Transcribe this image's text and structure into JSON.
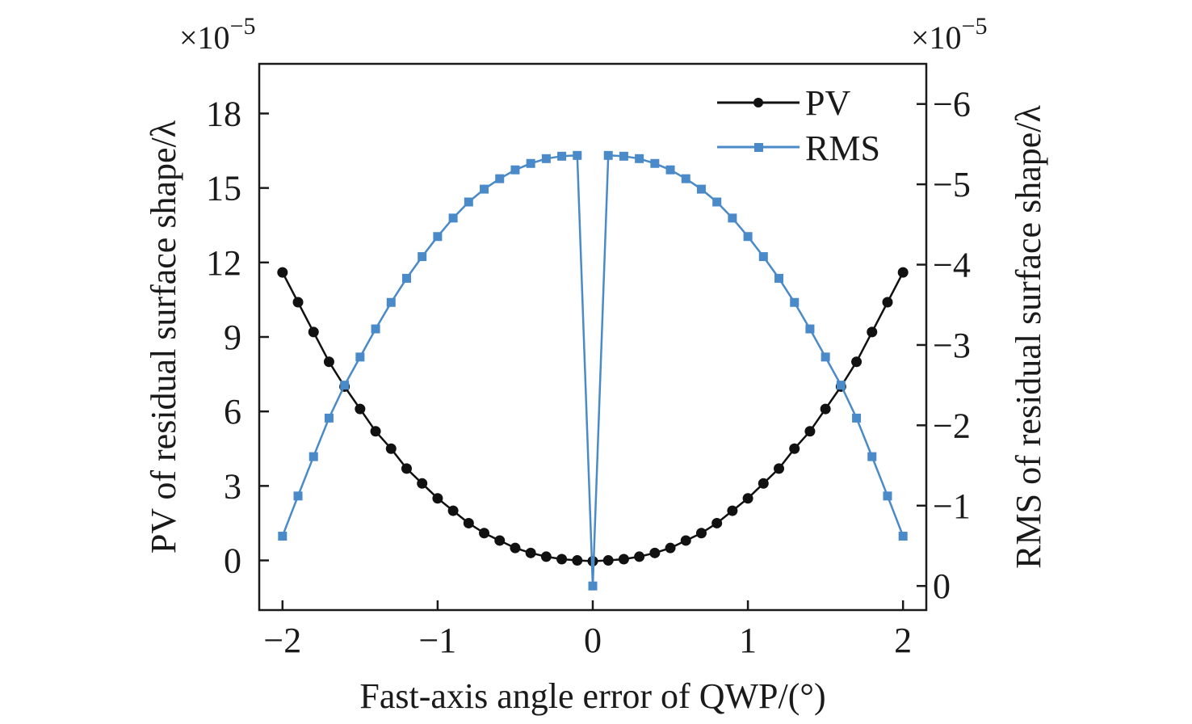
{
  "chart_data": {
    "type": "line",
    "xlabel": "Fast-axis angle error of QWP/(°)",
    "ylabel_left": "PV of residual surface shape/λ",
    "ylabel_right": "RMS of residual surface shape/λ",
    "exponent_left": "×10",
    "exponent_left_sup": "−5",
    "exponent_right": "×10",
    "exponent_right_sup": "−5",
    "xlim": [
      -2.15,
      2.15
    ],
    "ylim_left": [
      -2,
      20
    ],
    "ylim_right": [
      0.3,
      -6.5
    ],
    "x_ticks": [
      -2,
      -1,
      0,
      1,
      2
    ],
    "x_tick_labels": [
      "−2",
      "−1",
      "0",
      "1",
      "2"
    ],
    "y_left_ticks": [
      0,
      3,
      6,
      9,
      12,
      15,
      18
    ],
    "y_left_tick_labels": [
      "0",
      "3",
      "6",
      "9",
      "12",
      "15",
      "18"
    ],
    "y_right_ticks": [
      0,
      -1,
      -2,
      -3,
      -4,
      -5,
      -6
    ],
    "y_right_tick_labels": [
      "0",
      "−1",
      "−2",
      "−3",
      "−4",
      "−5",
      "−6"
    ],
    "x": [
      -2.0,
      -1.9,
      -1.8,
      -1.7,
      -1.6,
      -1.5,
      -1.4,
      -1.3,
      -1.2,
      -1.1,
      -1.0,
      -0.9,
      -0.8,
      -0.7,
      -0.6,
      -0.5,
      -0.4,
      -0.3,
      -0.2,
      -0.1,
      0.0,
      0.1,
      0.2,
      0.3,
      0.4,
      0.5,
      0.6,
      0.7,
      0.8,
      0.9,
      1.0,
      1.1,
      1.2,
      1.3,
      1.4,
      1.5,
      1.6,
      1.7,
      1.8,
      1.9,
      2.0
    ],
    "series": [
      {
        "name": "PV",
        "axis": "left",
        "color": "#111111",
        "marker": "circle",
        "values": [
          11.6,
          10.4,
          9.2,
          8.0,
          7.0,
          6.1,
          5.2,
          4.5,
          3.7,
          3.1,
          2.5,
          2.0,
          1.5,
          1.1,
          0.8,
          0.5,
          0.3,
          0.15,
          0.05,
          0.0,
          -0.03,
          0.0,
          0.05,
          0.15,
          0.3,
          0.5,
          0.8,
          1.1,
          1.5,
          2.0,
          2.5,
          3.1,
          3.7,
          4.5,
          5.2,
          6.1,
          7.0,
          8.0,
          9.2,
          10.4,
          11.6
        ]
      },
      {
        "name": "RMS",
        "axis": "right",
        "color": "#4a8ac8",
        "marker": "square",
        "values": [
          -0.62,
          -1.12,
          -1.61,
          -2.09,
          -2.5,
          -2.85,
          -3.2,
          -3.53,
          -3.83,
          -4.1,
          -4.35,
          -4.58,
          -4.78,
          -4.94,
          -5.07,
          -5.18,
          -5.26,
          -5.32,
          -5.35,
          -5.36,
          0.0,
          -5.36,
          -5.35,
          -5.32,
          -5.26,
          -5.18,
          -5.07,
          -4.94,
          -4.78,
          -4.58,
          -4.35,
          -4.1,
          -3.83,
          -3.53,
          -3.2,
          -2.85,
          -2.5,
          -2.09,
          -1.61,
          -1.12,
          -0.62
        ]
      }
    ],
    "legend_position": "top-right"
  }
}
